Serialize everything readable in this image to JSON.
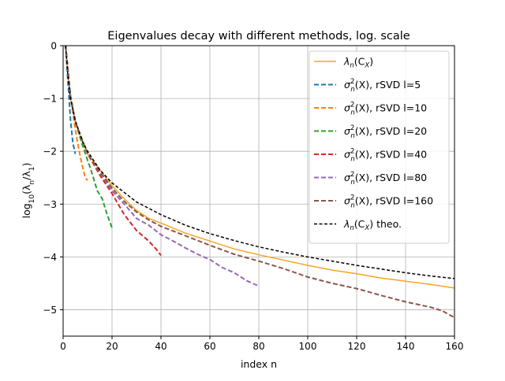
{
  "chart_data": {
    "type": "line",
    "title": "Eigenvalues decay with different methods, log. scale",
    "xlabel": "index n",
    "ylabel_parts": {
      "pre": "log",
      "sub": "10",
      "mid": "(λ",
      "sub2": "n",
      "mid2": "/λ",
      "sub3": "1",
      "post": ")"
    },
    "xlim": [
      0,
      160
    ],
    "ylim": [
      -5.5,
      0
    ],
    "xticks": [
      0,
      20,
      40,
      60,
      80,
      100,
      120,
      140,
      160
    ],
    "yticks": [
      0,
      -1,
      -2,
      -3,
      -4,
      -5
    ],
    "xtick_labels": [
      "0",
      "20",
      "40",
      "60",
      "80",
      "100",
      "120",
      "140",
      "160"
    ],
    "ytick_labels": [
      "0",
      "−1",
      "−2",
      "−3",
      "−4",
      "−5"
    ],
    "grid": true,
    "legend_position": "top-right",
    "series": [
      {
        "name_parts": {
          "base": "λ",
          "sub": "n",
          "arg": "(C",
          "argsub": "X",
          "tail": ")"
        },
        "style": "solid",
        "color": "#f5a623",
        "width": 1.5,
        "points": [
          [
            1,
            0
          ],
          [
            2,
            -0.6
          ],
          [
            3,
            -1.0
          ],
          [
            5,
            -1.45
          ],
          [
            8,
            -1.85
          ],
          [
            10,
            -2.05
          ],
          [
            15,
            -2.35
          ],
          [
            20,
            -2.65
          ],
          [
            25,
            -2.9
          ],
          [
            30,
            -3.12
          ],
          [
            35,
            -3.27
          ],
          [
            40,
            -3.36
          ],
          [
            50,
            -3.55
          ],
          [
            60,
            -3.7
          ],
          [
            70,
            -3.85
          ],
          [
            80,
            -3.96
          ],
          [
            90,
            -4.06
          ],
          [
            100,
            -4.16
          ],
          [
            110,
            -4.25
          ],
          [
            120,
            -4.32
          ],
          [
            130,
            -4.4
          ],
          [
            140,
            -4.46
          ],
          [
            150,
            -4.52
          ],
          [
            160,
            -4.59
          ]
        ]
      },
      {
        "name_parts": {
          "base": "σ",
          "sup": "2",
          "sub": "n",
          "arg": "(X)",
          "suffix": ", rSVD l=5"
        },
        "style": "dashed",
        "color": "#1f77b4",
        "width": 2,
        "points": [
          [
            1,
            0
          ],
          [
            2,
            -0.7
          ],
          [
            3,
            -1.4
          ],
          [
            4,
            -1.85
          ],
          [
            5,
            -2.05
          ]
        ]
      },
      {
        "name_parts": {
          "base": "σ",
          "sup": "2",
          "sub": "n",
          "arg": "(X)",
          "suffix": ", rSVD l=10"
        },
        "style": "dashed",
        "color": "#ff7f0e",
        "width": 2,
        "points": [
          [
            1,
            0
          ],
          [
            3,
            -0.95
          ],
          [
            5,
            -1.6
          ],
          [
            7,
            -2.1
          ],
          [
            9,
            -2.5
          ],
          [
            10,
            -2.55
          ]
        ]
      },
      {
        "name_parts": {
          "base": "σ",
          "sup": "2",
          "sub": "n",
          "arg": "(X)",
          "suffix": ", rSVD l=20"
        },
        "style": "dashed",
        "color": "#2ca02c",
        "width": 2,
        "points": [
          [
            1,
            0
          ],
          [
            3,
            -0.95
          ],
          [
            5,
            -1.45
          ],
          [
            8,
            -1.9
          ],
          [
            11,
            -2.3
          ],
          [
            14,
            -2.75
          ],
          [
            16,
            -2.9
          ],
          [
            18,
            -3.2
          ],
          [
            20,
            -3.45
          ]
        ]
      },
      {
        "name_parts": {
          "base": "σ",
          "sup": "2",
          "sub": "n",
          "arg": "(X)",
          "suffix": ", rSVD l=40"
        },
        "style": "dashed",
        "color": "#d62728",
        "width": 2,
        "points": [
          [
            1,
            0
          ],
          [
            3,
            -0.95
          ],
          [
            5,
            -1.45
          ],
          [
            10,
            -2.05
          ],
          [
            15,
            -2.45
          ],
          [
            20,
            -2.8
          ],
          [
            25,
            -3.2
          ],
          [
            30,
            -3.5
          ],
          [
            35,
            -3.7
          ],
          [
            38,
            -3.85
          ],
          [
            40,
            -3.97
          ]
        ]
      },
      {
        "name_parts": {
          "base": "σ",
          "sup": "2",
          "sub": "n",
          "arg": "(X)",
          "suffix": ", rSVD l=80"
        },
        "style": "dashed",
        "color": "#9467bd",
        "width": 2,
        "points": [
          [
            1,
            0
          ],
          [
            3,
            -0.95
          ],
          [
            5,
            -1.45
          ],
          [
            10,
            -2.05
          ],
          [
            15,
            -2.4
          ],
          [
            20,
            -2.75
          ],
          [
            25,
            -3.0
          ],
          [
            30,
            -3.27
          ],
          [
            35,
            -3.4
          ],
          [
            40,
            -3.58
          ],
          [
            45,
            -3.7
          ],
          [
            50,
            -3.83
          ],
          [
            55,
            -3.95
          ],
          [
            60,
            -4.05
          ],
          [
            65,
            -4.2
          ],
          [
            70,
            -4.3
          ],
          [
            75,
            -4.45
          ],
          [
            80,
            -4.55
          ]
        ]
      },
      {
        "name_parts": {
          "base": "σ",
          "sup": "2",
          "sub": "n",
          "arg": "(X)",
          "suffix": ", rSVD l=160"
        },
        "style": "dashed",
        "color": "#8c564b",
        "width": 2,
        "points": [
          [
            1,
            0
          ],
          [
            3,
            -0.95
          ],
          [
            5,
            -1.45
          ],
          [
            10,
            -2.05
          ],
          [
            15,
            -2.38
          ],
          [
            20,
            -2.7
          ],
          [
            25,
            -2.95
          ],
          [
            30,
            -3.15
          ],
          [
            35,
            -3.3
          ],
          [
            40,
            -3.42
          ],
          [
            50,
            -3.6
          ],
          [
            60,
            -3.78
          ],
          [
            70,
            -3.95
          ],
          [
            80,
            -4.08
          ],
          [
            90,
            -4.22
          ],
          [
            100,
            -4.38
          ],
          [
            110,
            -4.5
          ],
          [
            120,
            -4.6
          ],
          [
            130,
            -4.73
          ],
          [
            140,
            -4.85
          ],
          [
            150,
            -4.95
          ],
          [
            155,
            -5.02
          ],
          [
            160,
            -5.15
          ]
        ]
      },
      {
        "name_parts": {
          "base": "λ",
          "sub": "n",
          "arg": "(C",
          "argsub": "X",
          "tail": ")",
          "suffix": " theo."
        },
        "style": "dashed",
        "color": "#000000",
        "width": 1.5,
        "points": [
          [
            1,
            0
          ],
          [
            2,
            -0.6
          ],
          [
            3,
            -1.0
          ],
          [
            5,
            -1.42
          ],
          [
            8,
            -1.82
          ],
          [
            10,
            -2.0
          ],
          [
            15,
            -2.35
          ],
          [
            20,
            -2.6
          ],
          [
            30,
            -2.96
          ],
          [
            40,
            -3.2
          ],
          [
            50,
            -3.4
          ],
          [
            60,
            -3.56
          ],
          [
            70,
            -3.69
          ],
          [
            80,
            -3.81
          ],
          [
            90,
            -3.91
          ],
          [
            100,
            -4.0
          ],
          [
            110,
            -4.08
          ],
          [
            120,
            -4.16
          ],
          [
            130,
            -4.23
          ],
          [
            140,
            -4.3
          ],
          [
            150,
            -4.36
          ],
          [
            160,
            -4.41
          ]
        ]
      }
    ]
  }
}
